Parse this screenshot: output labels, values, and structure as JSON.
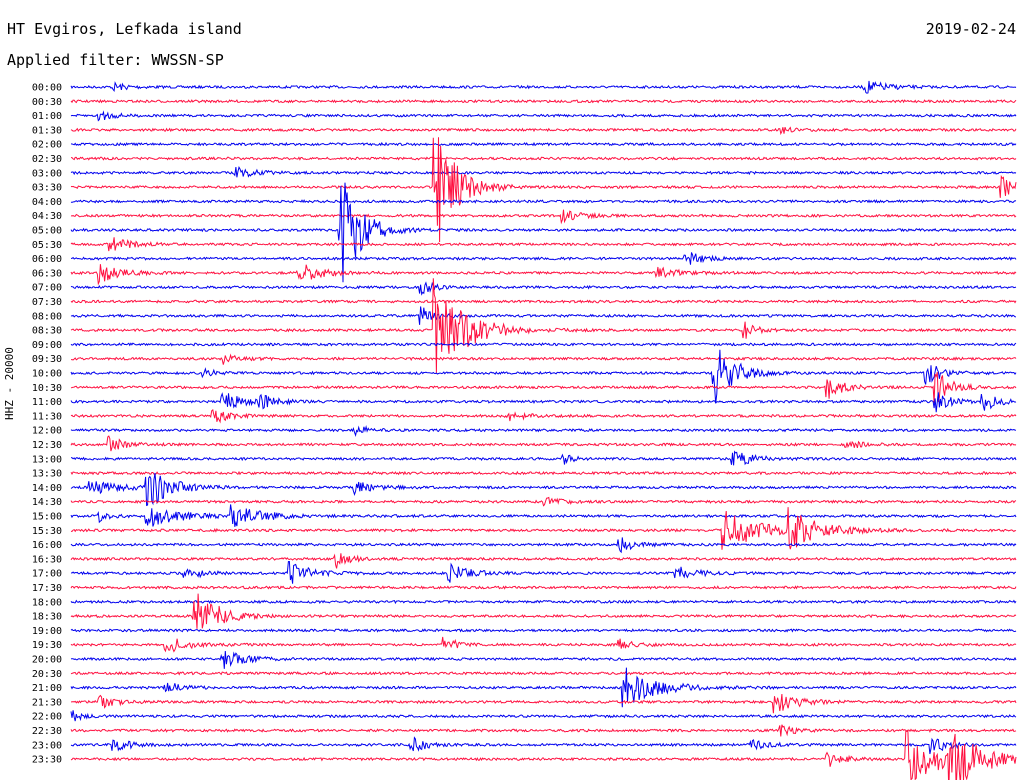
{
  "header": {
    "title": "HT Evgiros, Lefkada island",
    "date": "2019-02-24",
    "filter": "Applied filter: WWSSN-SP"
  },
  "chart_data": {
    "type": "line",
    "title": "HT Evgiros, Lefkada island",
    "subtitle": "Applied filter: WWSSN-SP",
    "ylabel": "HHZ - 20000",
    "date": "2019-02-24",
    "row_labels": [
      "00:00",
      "00:30",
      "01:00",
      "01:30",
      "02:00",
      "02:30",
      "03:00",
      "03:30",
      "04:00",
      "04:30",
      "05:00",
      "05:30",
      "06:00",
      "06:30",
      "07:00",
      "07:30",
      "08:00",
      "08:30",
      "09:00",
      "09:30",
      "10:00",
      "10:30",
      "11:00",
      "11:30",
      "12:00",
      "12:30",
      "13:00",
      "13:30",
      "14:00",
      "14:30",
      "15:00",
      "15:30",
      "16:00",
      "16:30",
      "17:00",
      "17:30",
      "18:00",
      "18:30",
      "19:00",
      "19:30",
      "20:00",
      "20:30",
      "21:00",
      "21:30",
      "22:00",
      "22:30",
      "23:00",
      "23:30"
    ],
    "row_minutes": 30,
    "colors": [
      "#0000ee",
      "#ff1040"
    ],
    "noise_level": 1.2,
    "events": [
      {
        "row": 0,
        "t": 0.045,
        "a": 4,
        "d": 0.015
      },
      {
        "row": 0,
        "t": 0.84,
        "a": 7,
        "d": 0.02
      },
      {
        "row": 2,
        "t": 0.03,
        "a": 6,
        "d": 0.012
      },
      {
        "row": 3,
        "t": 0.75,
        "a": 4,
        "d": 0.012
      },
      {
        "row": 6,
        "t": 0.175,
        "a": 5,
        "d": 0.02
      },
      {
        "row": 7,
        "t": 0.385,
        "a": 70,
        "d": 0.02
      },
      {
        "row": 7,
        "t": 0.985,
        "a": 10,
        "d": 0.015
      },
      {
        "row": 9,
        "t": 0.52,
        "a": 9,
        "d": 0.015
      },
      {
        "row": 10,
        "t": 0.285,
        "a": 60,
        "d": 0.02
      },
      {
        "row": 11,
        "t": 0.04,
        "a": 8,
        "d": 0.02
      },
      {
        "row": 12,
        "t": 0.65,
        "a": 8,
        "d": 0.015
      },
      {
        "row": 13,
        "t": 0.03,
        "a": 10,
        "d": 0.02
      },
      {
        "row": 13,
        "t": 0.24,
        "a": 11,
        "d": 0.02
      },
      {
        "row": 13,
        "t": 0.62,
        "a": 6,
        "d": 0.02
      },
      {
        "row": 14,
        "t": 0.37,
        "a": 8,
        "d": 0.012
      },
      {
        "row": 16,
        "t": 0.37,
        "a": 10,
        "d": 0.015
      },
      {
        "row": 17,
        "t": 0.385,
        "a": 55,
        "d": 0.03
      },
      {
        "row": 17,
        "t": 0.71,
        "a": 12,
        "d": 0.01
      },
      {
        "row": 19,
        "t": 0.16,
        "a": 6,
        "d": 0.015
      },
      {
        "row": 20,
        "t": 0.14,
        "a": 5,
        "d": 0.01
      },
      {
        "row": 20,
        "t": 0.68,
        "a": 35,
        "d": 0.02
      },
      {
        "row": 20,
        "t": 0.905,
        "a": 12,
        "d": 0.015
      },
      {
        "row": 21,
        "t": 0.8,
        "a": 12,
        "d": 0.015
      },
      {
        "row": 21,
        "t": 0.915,
        "a": 18,
        "d": 0.015
      },
      {
        "row": 22,
        "t": 0.16,
        "a": 10,
        "d": 0.02
      },
      {
        "row": 22,
        "t": 0.2,
        "a": 6,
        "d": 0.015
      },
      {
        "row": 22,
        "t": 0.915,
        "a": 10,
        "d": 0.015
      },
      {
        "row": 22,
        "t": 0.965,
        "a": 9,
        "d": 0.015
      },
      {
        "row": 23,
        "t": 0.15,
        "a": 8,
        "d": 0.015
      },
      {
        "row": 23,
        "t": 0.46,
        "a": 6,
        "d": 0.015
      },
      {
        "row": 24,
        "t": 0.3,
        "a": 5,
        "d": 0.015
      },
      {
        "row": 25,
        "t": 0.04,
        "a": 8,
        "d": 0.015
      },
      {
        "row": 25,
        "t": 0.82,
        "a": 6,
        "d": 0.015
      },
      {
        "row": 26,
        "t": 0.52,
        "a": 6,
        "d": 0.01
      },
      {
        "row": 26,
        "t": 0.7,
        "a": 8,
        "d": 0.02
      },
      {
        "row": 28,
        "t": 0.02,
        "a": 7,
        "d": 0.03
      },
      {
        "row": 28,
        "t": 0.08,
        "a": 26,
        "d": 0.02
      },
      {
        "row": 28,
        "t": 0.3,
        "a": 6,
        "d": 0.02
      },
      {
        "row": 29,
        "t": 0.5,
        "a": 5,
        "d": 0.015
      },
      {
        "row": 30,
        "t": 0.03,
        "a": 6,
        "d": 0.01
      },
      {
        "row": 30,
        "t": 0.08,
        "a": 12,
        "d": 0.03
      },
      {
        "row": 30,
        "t": 0.17,
        "a": 11,
        "d": 0.03
      },
      {
        "row": 31,
        "t": 0.69,
        "a": 24,
        "d": 0.03
      },
      {
        "row": 31,
        "t": 0.76,
        "a": 20,
        "d": 0.03
      },
      {
        "row": 32,
        "t": 0.58,
        "a": 8,
        "d": 0.015
      },
      {
        "row": 33,
        "t": 0.28,
        "a": 10,
        "d": 0.012
      },
      {
        "row": 34,
        "t": 0.12,
        "a": 8,
        "d": 0.015
      },
      {
        "row": 34,
        "t": 0.23,
        "a": 12,
        "d": 0.02
      },
      {
        "row": 34,
        "t": 0.4,
        "a": 9,
        "d": 0.02
      },
      {
        "row": 34,
        "t": 0.64,
        "a": 7,
        "d": 0.02
      },
      {
        "row": 37,
        "t": 0.13,
        "a": 35,
        "d": 0.02
      },
      {
        "row": 39,
        "t": 0.1,
        "a": 10,
        "d": 0.02
      },
      {
        "row": 39,
        "t": 0.395,
        "a": 8,
        "d": 0.012
      },
      {
        "row": 39,
        "t": 0.58,
        "a": 6,
        "d": 0.015
      },
      {
        "row": 40,
        "t": 0.16,
        "a": 10,
        "d": 0.02
      },
      {
        "row": 42,
        "t": 0.1,
        "a": 6,
        "d": 0.015
      },
      {
        "row": 42,
        "t": 0.585,
        "a": 22,
        "d": 0.03
      },
      {
        "row": 43,
        "t": 0.03,
        "a": 7,
        "d": 0.015
      },
      {
        "row": 43,
        "t": 0.745,
        "a": 12,
        "d": 0.02
      },
      {
        "row": 44,
        "t": 0.0,
        "a": 6,
        "d": 0.01
      },
      {
        "row": 45,
        "t": 0.75,
        "a": 6,
        "d": 0.015
      },
      {
        "row": 46,
        "t": 0.045,
        "a": 8,
        "d": 0.015
      },
      {
        "row": 46,
        "t": 0.36,
        "a": 8,
        "d": 0.015
      },
      {
        "row": 46,
        "t": 0.72,
        "a": 5,
        "d": 0.015
      },
      {
        "row": 46,
        "t": 0.91,
        "a": 10,
        "d": 0.015
      },
      {
        "row": 47,
        "t": 0.8,
        "a": 8,
        "d": 0.015
      },
      {
        "row": 47,
        "t": 0.885,
        "a": 30,
        "d": 0.03
      },
      {
        "row": 47,
        "t": 0.93,
        "a": 30,
        "d": 0.03
      }
    ]
  }
}
